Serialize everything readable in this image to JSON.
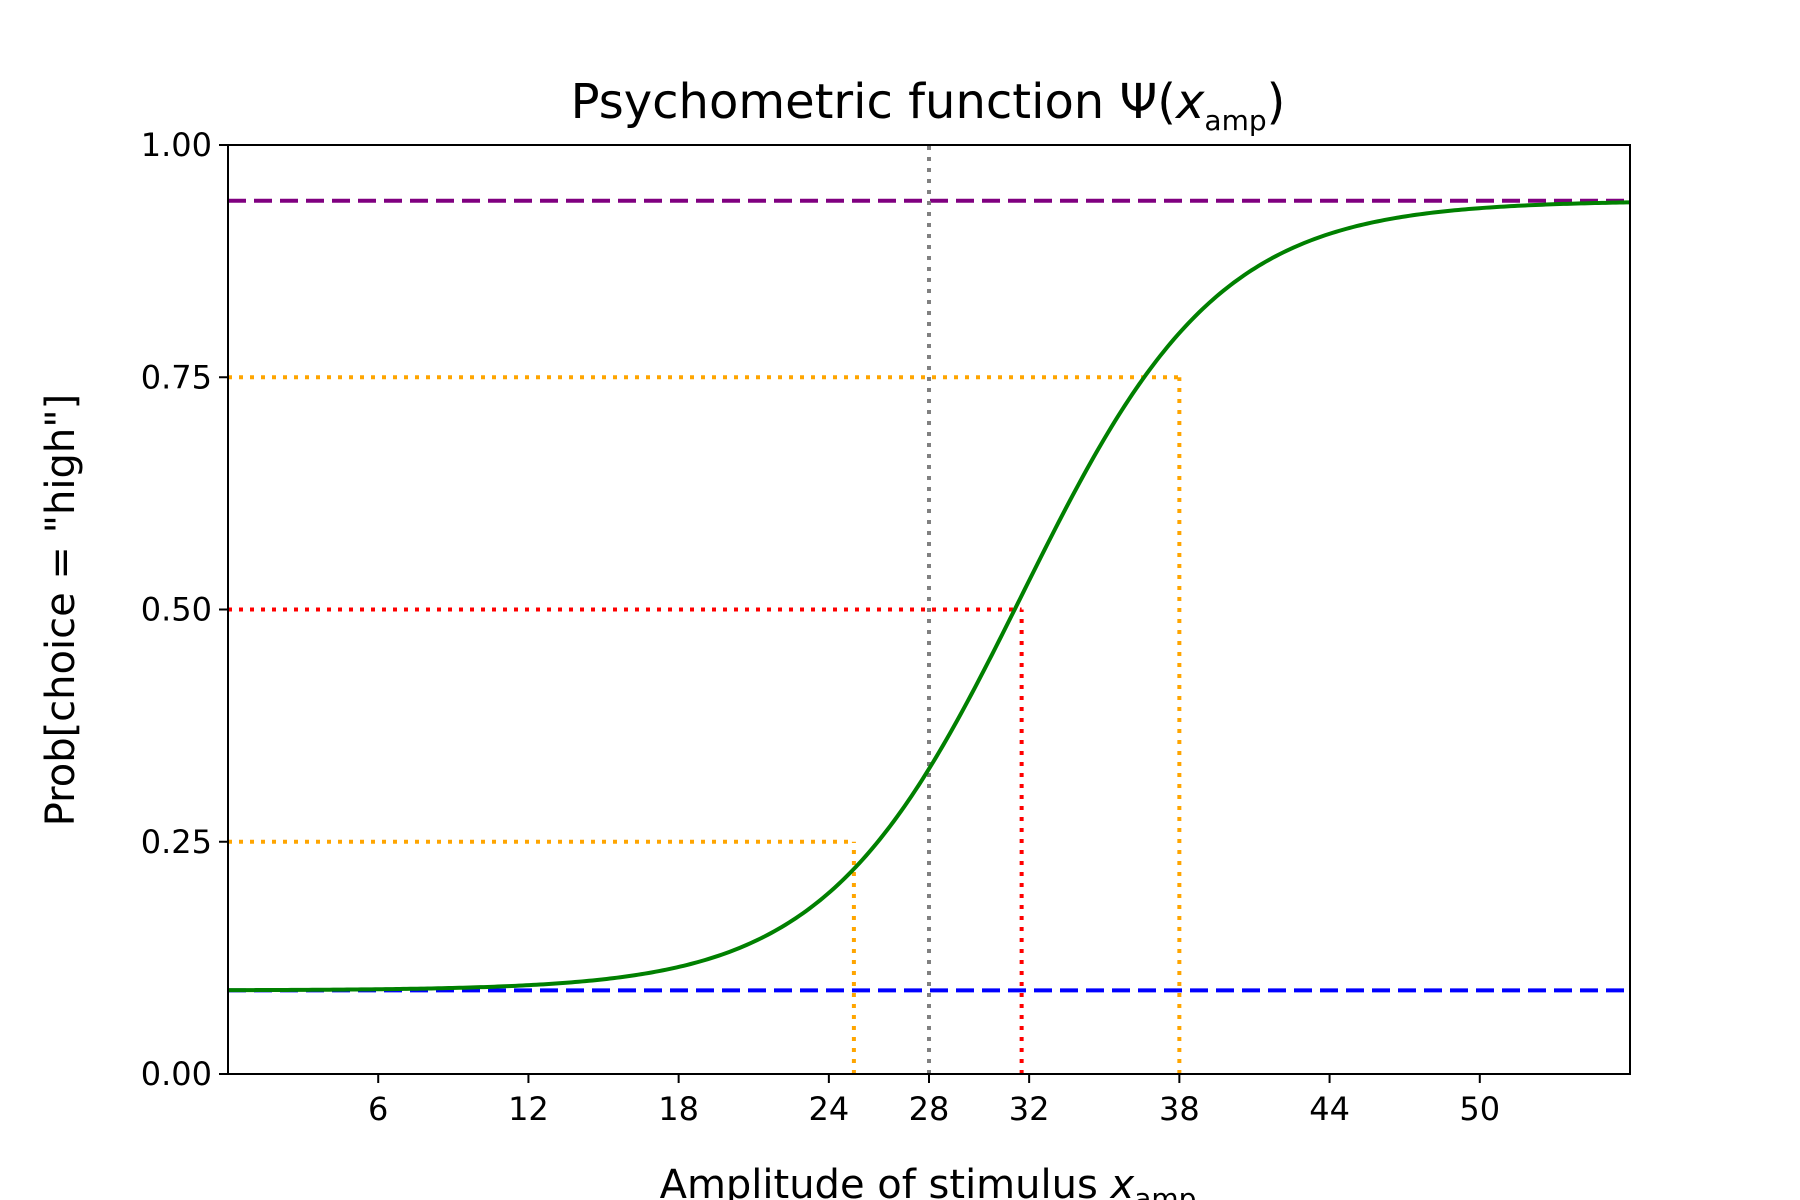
{
  "chart_data": {
    "type": "line",
    "title": {
      "main": "Psychometric function Ψ(",
      "var": "x",
      "sub": "amp",
      "end": ")"
    },
    "xlabel": {
      "main": "Amplitude of stimulus ",
      "var": "x",
      "sub": "amp"
    },
    "ylabel": "Prob[choice = \"high\"]",
    "xlim": [
      0,
      56
    ],
    "ylim": [
      0,
      1
    ],
    "xticks": [
      6,
      12,
      18,
      24,
      28,
      32,
      38,
      44,
      50
    ],
    "xtick_labels": [
      "6",
      "12",
      "18",
      "24",
      "28",
      "32",
      "38",
      "44",
      "50"
    ],
    "yticks": [
      0,
      0.25,
      0.5,
      0.75,
      1.0
    ],
    "ytick_labels": [
      "0.00",
      "0.25",
      "0.50",
      "0.75",
      "1.00"
    ],
    "grid": false,
    "series": [
      {
        "kind": "curve",
        "color": "#008000",
        "function": "logistic",
        "guess_rate": 0.09,
        "lapse_rate": 0.06,
        "threshold": 31.7,
        "slope": 0.2545,
        "x_range": [
          0,
          56
        ]
      }
    ],
    "reference_lines": [
      {
        "orientation": "horizontal",
        "y": 0.94,
        "color": "#800080",
        "style": "dashed",
        "x_range": [
          0,
          56
        ]
      },
      {
        "orientation": "horizontal",
        "y": 0.09,
        "color": "#0000ff",
        "style": "dashed",
        "x_range": [
          0,
          56
        ]
      },
      {
        "orientation": "vertical",
        "x": 28,
        "color": "#808080",
        "style": "dotted",
        "y_range": [
          0,
          1
        ]
      },
      {
        "orientation": "horizontal",
        "y": 0.75,
        "color": "#ffa500",
        "style": "dotted",
        "x_range": [
          0,
          38
        ]
      },
      {
        "orientation": "vertical",
        "x": 38,
        "color": "#ffa500",
        "style": "dotted",
        "y_range": [
          0,
          0.75
        ]
      },
      {
        "orientation": "horizontal",
        "y": 0.5,
        "color": "#ff0000",
        "style": "dotted",
        "x_range": [
          0,
          31.7
        ]
      },
      {
        "orientation": "vertical",
        "x": 31.7,
        "color": "#ff0000",
        "style": "dotted",
        "y_range": [
          0,
          0.5
        ]
      },
      {
        "orientation": "horizontal",
        "y": 0.25,
        "color": "#ffa500",
        "style": "dotted",
        "x_range": [
          0,
          25
        ]
      },
      {
        "orientation": "vertical",
        "x": 25,
        "color": "#ffa500",
        "style": "dotted",
        "y_range": [
          0,
          0.25
        ]
      }
    ]
  }
}
